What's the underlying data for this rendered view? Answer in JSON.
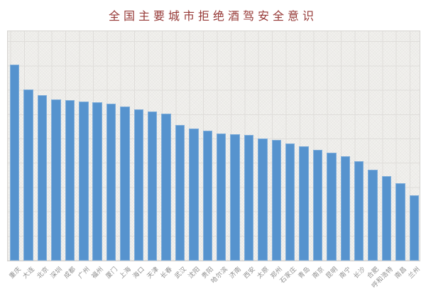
{
  "chart_data": {
    "type": "bar",
    "title": "全国主要城市拒绝酒驾安全意识",
    "title_color": "#953735",
    "bar_color": "#5693ce",
    "plot_bg": "#f2f1ee",
    "grid_color": "#dfddda",
    "grid": true,
    "legend": false,
    "xlabel": "",
    "ylabel": "",
    "y_axis_tick_labels_visible": false,
    "x_tick_rotation_deg": 45,
    "x_tick_color": "#8e8e8e",
    "ylim": [
      0,
      95
    ],
    "categories": [
      "重庆",
      "大连",
      "北京",
      "深圳",
      "成都",
      "广州",
      "福州",
      "厦门",
      "上海",
      "海口",
      "天津",
      "长春",
      "武汉",
      "沈阳",
      "贵阳",
      "哈尔滨",
      "济南",
      "西安",
      "太原",
      "郑州",
      "石家庄",
      "青岛",
      "南京",
      "昆明",
      "南宁",
      "长沙",
      "合肥",
      "呼和浩特",
      "南昌",
      "兰州"
    ],
    "values": [
      80.8,
      70.3,
      68.2,
      66.3,
      66.2,
      65.6,
      65.2,
      64.6,
      63.3,
      62.4,
      61.5,
      60.6,
      55.7,
      54.5,
      53.4,
      52.2,
      52.1,
      51.6,
      50.4,
      49.6,
      48.1,
      47.2,
      45.6,
      44.3,
      43.1,
      40.8,
      37.3,
      34.7,
      31.8,
      26.8
    ]
  }
}
